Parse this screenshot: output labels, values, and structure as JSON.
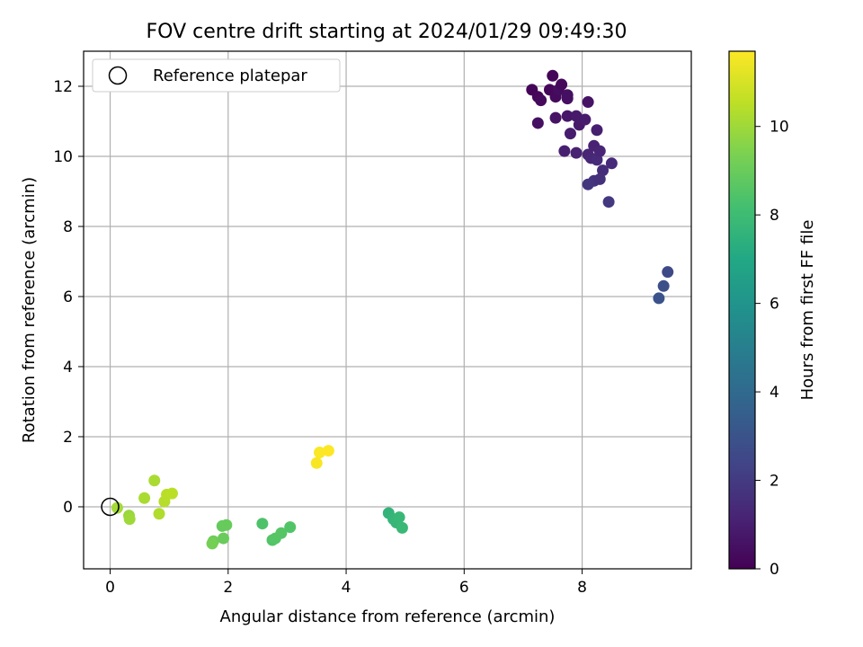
{
  "chart_data": {
    "type": "scatter",
    "title": "FOV centre drift starting at 2024/01/29 09:49:30",
    "xlabel": "Angular distance from reference (arcmin)",
    "ylabel": "Rotation from reference (arcmin)",
    "xlim": [
      -0.45,
      9.85
    ],
    "ylim": [
      -1.77,
      13.0
    ],
    "xticks": [
      0,
      2,
      4,
      6,
      8
    ],
    "yticks": [
      0,
      2,
      4,
      6,
      8,
      10,
      12
    ],
    "grid": true,
    "legend": {
      "placement": "top-left",
      "label": "Reference platepar"
    },
    "reference_point": {
      "x": 0,
      "y": 0
    },
    "colorbar": {
      "label": "Hours from first FF file",
      "colormap": "viridis",
      "range": [
        0,
        11.7
      ],
      "ticks": [
        0,
        2,
        4,
        6,
        8,
        10
      ]
    },
    "points": [
      {
        "x": 7.15,
        "y": 11.9,
        "c": 0.1
      },
      {
        "x": 7.25,
        "y": 11.7,
        "c": 0.2
      },
      {
        "x": 7.3,
        "y": 11.6,
        "c": 0.3
      },
      {
        "x": 7.45,
        "y": 11.9,
        "c": 0.2
      },
      {
        "x": 7.5,
        "y": 12.3,
        "c": 0.1
      },
      {
        "x": 7.55,
        "y": 11.7,
        "c": 0.3
      },
      {
        "x": 7.6,
        "y": 11.9,
        "c": 0.4
      },
      {
        "x": 7.65,
        "y": 12.05,
        "c": 0.2
      },
      {
        "x": 7.75,
        "y": 11.75,
        "c": 0.5
      },
      {
        "x": 7.75,
        "y": 11.65,
        "c": 0.5
      },
      {
        "x": 7.55,
        "y": 11.1,
        "c": 0.6
      },
      {
        "x": 7.25,
        "y": 10.95,
        "c": 0.5
      },
      {
        "x": 7.75,
        "y": 11.15,
        "c": 0.7
      },
      {
        "x": 7.9,
        "y": 11.15,
        "c": 0.8
      },
      {
        "x": 7.95,
        "y": 10.9,
        "c": 0.8
      },
      {
        "x": 8.05,
        "y": 11.05,
        "c": 0.9
      },
      {
        "x": 8.1,
        "y": 11.55,
        "c": 0.6
      },
      {
        "x": 7.8,
        "y": 10.65,
        "c": 0.9
      },
      {
        "x": 8.25,
        "y": 10.75,
        "c": 1.0
      },
      {
        "x": 7.7,
        "y": 10.15,
        "c": 1.0
      },
      {
        "x": 7.9,
        "y": 10.1,
        "c": 1.1
      },
      {
        "x": 8.1,
        "y": 10.05,
        "c": 1.2
      },
      {
        "x": 8.15,
        "y": 9.95,
        "c": 1.3
      },
      {
        "x": 8.2,
        "y": 10.3,
        "c": 1.1
      },
      {
        "x": 8.25,
        "y": 9.9,
        "c": 1.4
      },
      {
        "x": 8.3,
        "y": 10.15,
        "c": 1.2
      },
      {
        "x": 8.35,
        "y": 9.6,
        "c": 1.5
      },
      {
        "x": 8.5,
        "y": 9.8,
        "c": 1.4
      },
      {
        "x": 8.2,
        "y": 9.3,
        "c": 1.7
      },
      {
        "x": 8.3,
        "y": 9.35,
        "c": 1.6
      },
      {
        "x": 8.1,
        "y": 9.2,
        "c": 1.8
      },
      {
        "x": 8.45,
        "y": 8.7,
        "c": 1.9
      },
      {
        "x": 9.45,
        "y": 6.7,
        "c": 2.6
      },
      {
        "x": 9.38,
        "y": 6.3,
        "c": 2.8
      },
      {
        "x": 9.3,
        "y": 5.95,
        "c": 3.0
      },
      {
        "x": 4.72,
        "y": -0.18,
        "c": 7.6
      },
      {
        "x": 4.8,
        "y": -0.35,
        "c": 7.7
      },
      {
        "x": 4.85,
        "y": -0.45,
        "c": 7.75
      },
      {
        "x": 4.9,
        "y": -0.3,
        "c": 7.8
      },
      {
        "x": 4.95,
        "y": -0.6,
        "c": 7.85
      },
      {
        "x": 2.58,
        "y": -0.48,
        "c": 8.4
      },
      {
        "x": 2.75,
        "y": -0.95,
        "c": 8.5
      },
      {
        "x": 2.8,
        "y": -0.9,
        "c": 8.55
      },
      {
        "x": 2.9,
        "y": -0.75,
        "c": 8.6
      },
      {
        "x": 3.05,
        "y": -0.58,
        "c": 8.5
      },
      {
        "x": 1.9,
        "y": -0.55,
        "c": 8.9
      },
      {
        "x": 1.97,
        "y": -0.52,
        "c": 8.95
      },
      {
        "x": 1.92,
        "y": -0.9,
        "c": 9.0
      },
      {
        "x": 1.75,
        "y": -0.98,
        "c": 9.1
      },
      {
        "x": 1.73,
        "y": -1.05,
        "c": 9.2
      },
      {
        "x": 0.32,
        "y": -0.25,
        "c": 9.9
      },
      {
        "x": 0.33,
        "y": -0.35,
        "c": 10.0
      },
      {
        "x": 0.12,
        "y": -0.03,
        "c": 10.1
      },
      {
        "x": 0.58,
        "y": 0.25,
        "c": 10.2
      },
      {
        "x": 0.75,
        "y": 0.75,
        "c": 10.2
      },
      {
        "x": 0.83,
        "y": -0.2,
        "c": 10.3
      },
      {
        "x": 0.92,
        "y": 0.15,
        "c": 10.4
      },
      {
        "x": 0.96,
        "y": 0.35,
        "c": 10.45
      },
      {
        "x": 1.05,
        "y": 0.38,
        "c": 10.5
      },
      {
        "x": 3.5,
        "y": 1.25,
        "c": 11.6
      },
      {
        "x": 3.55,
        "y": 1.55,
        "c": 11.65
      },
      {
        "x": 3.7,
        "y": 1.6,
        "c": 11.7
      }
    ]
  }
}
